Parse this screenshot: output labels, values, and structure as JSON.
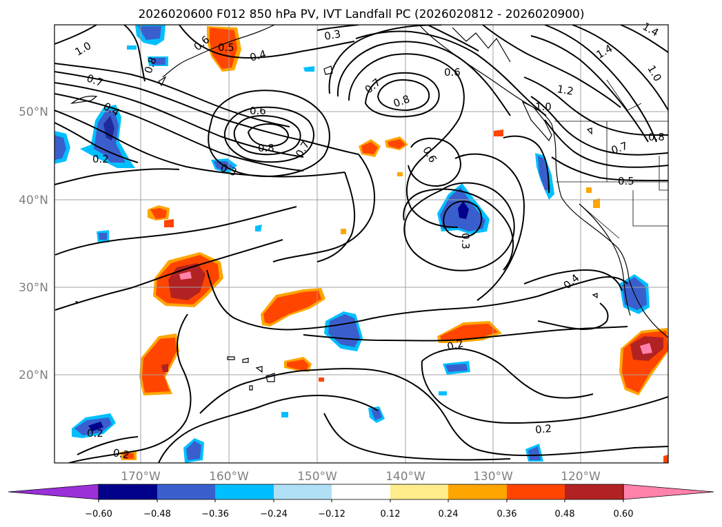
{
  "title": "2026020600 F012 850 hPa PV, IVT Landfall PC (2026020812 - 2026020900)",
  "map": {
    "lon_labels": [
      "170°W",
      "160°W",
      "150°W",
      "140°W",
      "130°W",
      "120°W"
    ],
    "lat_labels": [
      "50°N",
      "40°N",
      "30°N",
      "20°N"
    ]
  },
  "contour_labels": [
    {
      "id": "c1",
      "text": "1.0"
    },
    {
      "id": "c2",
      "text": "0.6"
    },
    {
      "id": "c3",
      "text": "0.5"
    },
    {
      "id": "c4",
      "text": "0.4"
    },
    {
      "id": "c5",
      "text": "0.3"
    },
    {
      "id": "c6",
      "text": "1.4"
    },
    {
      "id": "c7",
      "text": "1.4"
    },
    {
      "id": "c8",
      "text": "0.8"
    },
    {
      "id": "c9",
      "text": "0.7"
    },
    {
      "id": "c10",
      "text": "0.7"
    },
    {
      "id": "c11",
      "text": "0.6"
    },
    {
      "id": "c12",
      "text": "0.8"
    },
    {
      "id": "c13",
      "text": "1.2"
    },
    {
      "id": "c14",
      "text": "1.0"
    },
    {
      "id": "c15",
      "text": "1.0"
    },
    {
      "id": "c16",
      "text": "0.4"
    },
    {
      "id": "c17",
      "text": "0.6"
    },
    {
      "id": "c18",
      "text": "0.8"
    },
    {
      "id": "c19",
      "text": "0.7"
    },
    {
      "id": "c20",
      "text": "0.6"
    },
    {
      "id": "c21",
      "text": "0.2"
    },
    {
      "id": "c22",
      "text": "0.3"
    },
    {
      "id": "c23",
      "text": "0.7"
    },
    {
      "id": "c24",
      "text": "0.8"
    },
    {
      "id": "c25",
      "text": "0.5"
    },
    {
      "id": "c26",
      "text": "0.3"
    },
    {
      "id": "c27",
      "text": "0.4"
    },
    {
      "id": "c28",
      "text": "0.2"
    },
    {
      "id": "c29",
      "text": "0.2"
    },
    {
      "id": "c30",
      "text": "0.2"
    },
    {
      "id": "c31",
      "text": "0.2"
    }
  ],
  "colorbar": {
    "ticks": [
      "−0.60",
      "−0.48",
      "−0.36",
      "−0.24",
      "−0.12",
      "0.12",
      "0.24",
      "0.36",
      "0.48",
      "0.60"
    ],
    "colors": {
      "under": "#9b30d9",
      "neg060": "#1f2a9c",
      "neg048": "#00008b",
      "neg036": "#3a5fcd",
      "neg024": "#00bfff",
      "neg012": "#b0e0f6",
      "neutral": "#ffffff",
      "pos012": "#ffec8b",
      "pos024": "#ffa500",
      "pos036": "#ff4500",
      "pos048": "#b22222",
      "over": "#ff82ab"
    }
  }
}
